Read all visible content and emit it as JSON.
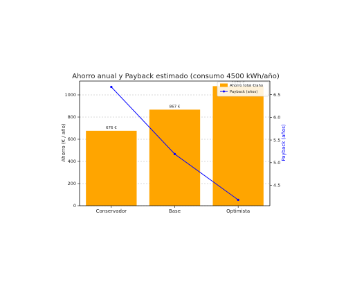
{
  "chart_data": {
    "type": "bar",
    "title": "Ahorro anual y Payback estimado (consumo 4500 kWh/año)",
    "xlabel": "",
    "ylabel": "Ahorro (€ / año)",
    "y2label": "Payback (años)",
    "categories": [
      "Conservador",
      "Base",
      "Optimista"
    ],
    "bar_series": {
      "name": "Ahorro total €/año",
      "values": [
        676,
        867,
        1079
      ],
      "labels": [
        "676 €",
        "867 €",
        "1079 €"
      ],
      "color": "#FFA500"
    },
    "line_series": {
      "name": "Payback (años)",
      "values": [
        6.67,
        5.19,
        4.18
      ],
      "color": "#0000FF"
    },
    "ylim": [
      0,
      1125
    ],
    "y_ticks": [
      0,
      200,
      400,
      600,
      800,
      1000
    ],
    "y2lim": [
      4.05,
      6.8
    ],
    "y2_ticks": [
      4.5,
      5.0,
      5.5,
      6.0,
      6.5
    ],
    "y2_tick_labels": [
      "4.5",
      "5.0",
      "5.5",
      "6.0",
      "6.5"
    ],
    "grid": true,
    "legend_position": "top-right"
  }
}
